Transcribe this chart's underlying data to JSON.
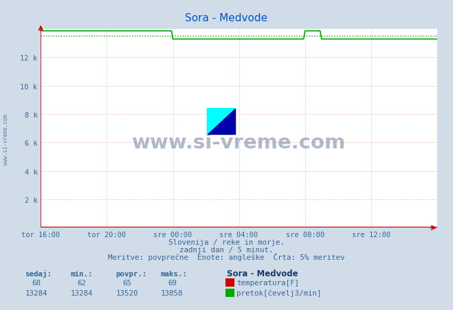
{
  "title": "Sora - Medvode",
  "title_color": "#0055cc",
  "bg_color": "#d0dde8",
  "plot_bg_color": "#ffffff",
  "grid_color_h": "#ffaaaa",
  "grid_color_v": "#aaccdd",
  "x_tick_labels": [
    "tor 16:00",
    "tor 20:00",
    "sre 00:00",
    "sre 04:00",
    "sre 08:00",
    "sre 12:00"
  ],
  "x_tick_positions": [
    0,
    48,
    96,
    144,
    192,
    240
  ],
  "y_ticks": [
    0,
    2000,
    4000,
    6000,
    8000,
    10000,
    12000
  ],
  "y_tick_labels": [
    "",
    "2 k",
    "4 k",
    "6 k",
    "8 k",
    "10 k",
    "12 k"
  ],
  "ylim": [
    0,
    14000
  ],
  "xlim": [
    0,
    288
  ],
  "temp_color": "#cc0000",
  "flow_color": "#00aa00",
  "avg_flow": 13520,
  "watermark_text": "www.si-vreme.com",
  "watermark_color": "#1a3a6e",
  "sub_text1": "Slovenija / reke in morje.",
  "sub_text2": "zadnji dan / 5 minut.",
  "sub_text3": "Meritve: povprečne  Enote: angleške  Črta: 5% meritev",
  "text_color": "#336699",
  "table_header": [
    "sedaj:",
    "min.:",
    "povpr.:",
    "maks.:"
  ],
  "temp_row": [
    "68",
    "62",
    "65",
    "69"
  ],
  "flow_row": [
    "13284",
    "13284",
    "13520",
    "13858"
  ],
  "legend_title": "Sora - Medvode",
  "legend_temp": "temperatura[F]",
  "legend_flow": "pretok[čevelj3/min]",
  "n_points": 289,
  "axis_color": "#cc0000",
  "side_label": "www.si-vreme.com"
}
